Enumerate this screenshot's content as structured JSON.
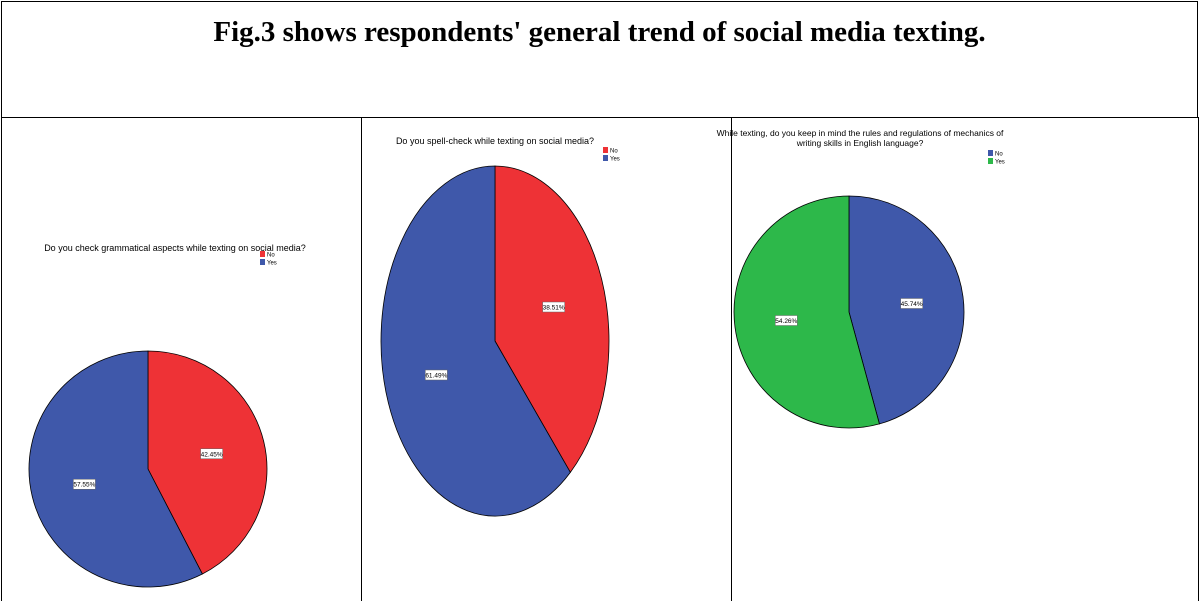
{
  "title": "Fig.3 shows respondents' general trend of social media texting.",
  "colors": {
    "no_red": "#ee3236",
    "yes_blue": "#3f58aa",
    "green": "#2db84a"
  },
  "chart_data": [
    {
      "type": "pie",
      "title": "Do you check grammatical aspects while texting on social media?",
      "legend": [
        {
          "name": "No",
          "color": "#ee3236"
        },
        {
          "name": "Yes",
          "color": "#3f58aa"
        }
      ],
      "slices": [
        {
          "name": "No",
          "value": 42.45,
          "label": "42.45%",
          "color": "#ee3236"
        },
        {
          "name": "Yes",
          "value": 57.55,
          "label": "57.55%",
          "color": "#3f58aa"
        }
      ]
    },
    {
      "type": "pie",
      "title": "Do you spell-check while texting on social media?",
      "legend": [
        {
          "name": "No",
          "color": "#ee3236"
        },
        {
          "name": "Yes",
          "color": "#3f58aa"
        }
      ],
      "slices": [
        {
          "name": "No",
          "value": 38.51,
          "label": "38.51%",
          "color": "#ee3236"
        },
        {
          "name": "Yes",
          "value": 61.49,
          "label": "61.49%",
          "color": "#3f58aa"
        }
      ]
    },
    {
      "type": "pie",
      "title": "While texting, do you keep in mind the rules and regulations of mechanics of writing skills in English language?",
      "legend": [
        {
          "name": "No",
          "color": "#3f58aa"
        },
        {
          "name": "Yes",
          "color": "#2db84a"
        }
      ],
      "slices": [
        {
          "name": "No",
          "value": 45.74,
          "label": "45.74%",
          "color": "#3f58aa"
        },
        {
          "name": "Yes",
          "value": 54.26,
          "label": "54.26%",
          "color": "#2db84a"
        }
      ]
    }
  ]
}
